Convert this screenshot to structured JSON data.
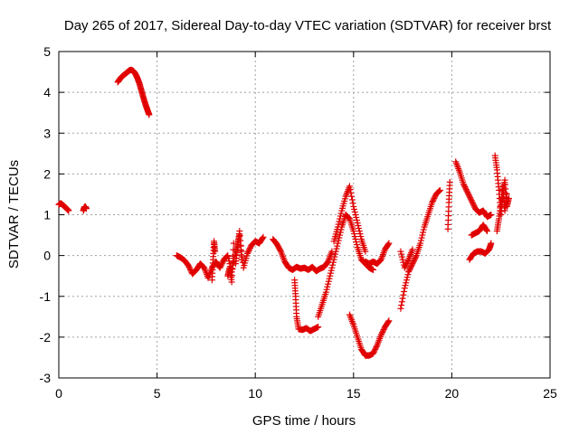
{
  "chart_data": {
    "type": "scatter",
    "title": "Day 265 of 2017, Sidereal Day-to-day VTEC variation (SDTVAR) for receiver brst",
    "xlabel": "GPS time / hours",
    "ylabel": "SDTVAR / TECUs",
    "xlim": [
      0,
      25
    ],
    "ylim": [
      -3,
      5
    ],
    "xticks": [
      0,
      5,
      10,
      15,
      20,
      25
    ],
    "yticks": [
      -3,
      -2,
      -1,
      0,
      1,
      2,
      3,
      4,
      5
    ],
    "grid": true,
    "marker": "+",
    "color": "#e00000",
    "series": [
      {
        "name": "brst",
        "segments": [
          {
            "x": [
              0.0,
              0.1,
              0.2,
              0.3,
              0.4,
              0.5
            ],
            "y": [
              1.25,
              1.28,
              1.24,
              1.2,
              1.15,
              1.1
            ]
          },
          {
            "x": [
              1.25,
              1.3,
              1.35,
              1.4
            ],
            "y": [
              1.1,
              1.18,
              1.2,
              1.15
            ]
          },
          {
            "x": [
              3.0,
              3.1,
              3.2,
              3.3,
              3.4,
              3.5,
              3.6,
              3.7,
              3.8,
              3.9,
              4.0,
              4.1,
              4.2,
              4.3,
              4.4,
              4.5,
              4.6
            ],
            "y": [
              4.25,
              4.32,
              4.38,
              4.42,
              4.46,
              4.5,
              4.54,
              4.55,
              4.52,
              4.45,
              4.35,
              4.22,
              4.05,
              3.88,
              3.72,
              3.58,
              3.45
            ]
          },
          {
            "x": [
              6.0,
              6.2,
              6.4,
              6.6,
              6.8,
              7.0,
              7.2,
              7.4,
              7.6,
              7.8,
              8.0,
              8.2,
              8.4,
              8.6,
              8.8,
              9.0,
              9.2,
              9.4,
              9.6,
              9.8,
              10.0,
              10.2,
              10.4
            ],
            "y": [
              0.0,
              -0.05,
              -0.12,
              -0.25,
              -0.45,
              -0.35,
              -0.2,
              -0.3,
              -0.55,
              -0.3,
              -0.15,
              -0.3,
              -0.1,
              0.0,
              -0.4,
              0.1,
              0.5,
              -0.3,
              0.05,
              0.25,
              0.35,
              0.3,
              0.45
            ]
          },
          {
            "x": [
              7.8,
              7.85,
              7.9,
              7.95
            ],
            "y": [
              -0.6,
              -0.1,
              0.35,
              0.1
            ]
          },
          {
            "x": [
              8.6,
              8.7,
              8.8,
              8.9
            ],
            "y": [
              -0.5,
              -0.3,
              -0.65,
              0.3
            ]
          },
          {
            "x": [
              9.0,
              9.1,
              9.2,
              9.3
            ],
            "y": [
              -0.2,
              0.2,
              0.6,
              -0.1
            ]
          },
          {
            "x": [
              10.9,
              11.1,
              11.3,
              11.5,
              11.7,
              11.9,
              12.1,
              12.3,
              12.5,
              12.7,
              12.9,
              13.1,
              13.3,
              13.5,
              13.7,
              13.9
            ],
            "y": [
              0.4,
              0.28,
              0.1,
              -0.15,
              -0.3,
              -0.35,
              -0.28,
              -0.32,
              -0.3,
              -0.35,
              -0.28,
              -0.38,
              -0.32,
              -0.28,
              -0.15,
              0.1
            ]
          },
          {
            "x": [
              12.0,
              12.05,
              12.1,
              12.2,
              12.4,
              12.6,
              12.8,
              13.0,
              13.2
            ],
            "y": [
              -0.6,
              -1.0,
              -1.5,
              -1.8,
              -1.82,
              -1.78,
              -1.85,
              -1.8,
              -1.75
            ]
          },
          {
            "x": [
              13.2,
              13.4,
              13.6,
              13.8,
              14.0,
              14.2,
              14.4,
              14.6,
              14.8,
              15.0,
              15.2,
              15.4,
              15.6,
              15.8,
              16.0
            ],
            "y": [
              -1.5,
              -1.2,
              -0.9,
              -0.5,
              -0.1,
              0.3,
              0.7,
              1.0,
              0.9,
              0.6,
              0.2,
              -0.1,
              -0.2,
              -0.3,
              -0.35
            ]
          },
          {
            "x": [
              14.0,
              14.2,
              14.4,
              14.6,
              14.8,
              15.0,
              15.2,
              15.4,
              15.6
            ],
            "y": [
              0.35,
              0.7,
              1.1,
              1.45,
              1.7,
              1.2,
              0.8,
              0.4,
              0.1
            ]
          },
          {
            "x": [
              15.6,
              15.8,
              16.0,
              16.2,
              16.4,
              16.6,
              16.8
            ],
            "y": [
              -0.15,
              -0.2,
              -0.15,
              -0.2,
              -0.1,
              0.15,
              0.3
            ]
          },
          {
            "x": [
              14.8,
              15.0,
              15.2,
              15.4,
              15.6,
              15.8,
              16.0,
              16.2,
              16.4,
              16.6,
              16.8
            ],
            "y": [
              -1.45,
              -1.7,
              -2.0,
              -2.3,
              -2.45,
              -2.45,
              -2.4,
              -2.2,
              -1.95,
              -1.75,
              -1.6
            ]
          },
          {
            "x": [
              17.4,
              17.6,
              17.8,
              18.0,
              18.2,
              18.4,
              18.6,
              18.8,
              19.0,
              19.2,
              19.4
            ],
            "y": [
              -1.3,
              -0.8,
              -0.4,
              -0.2,
              0.0,
              0.3,
              0.7,
              1.0,
              1.3,
              1.5,
              1.6
            ]
          },
          {
            "x": [
              17.4,
              17.6,
              17.8,
              18.0
            ],
            "y": [
              0.1,
              -0.3,
              -0.1,
              0.15
            ]
          },
          {
            "x": [
              19.8,
              19.85,
              19.9
            ],
            "y": [
              0.65,
              1.3,
              1.8
            ]
          },
          {
            "x": [
              20.2,
              20.4,
              20.6,
              20.8,
              21.0,
              21.2,
              21.4,
              21.6,
              21.8,
              22.0
            ],
            "y": [
              2.3,
              2.05,
              1.75,
              1.55,
              1.35,
              1.15,
              1.05,
              1.1,
              0.95,
              1.0
            ]
          },
          {
            "x": [
              20.9,
              21.1,
              21.3,
              21.5,
              21.7,
              21.9,
              22.0
            ],
            "y": [
              -0.1,
              0.05,
              0.1,
              0.1,
              0.05,
              0.15,
              0.3
            ]
          },
          {
            "x": [
              21.0,
              21.2,
              21.4,
              21.6,
              21.8
            ],
            "y": [
              0.5,
              0.55,
              0.6,
              0.75,
              0.6
            ]
          },
          {
            "x": [
              22.2,
              22.3,
              22.4,
              22.5,
              22.6,
              22.7,
              22.8,
              22.9
            ],
            "y": [
              2.45,
              2.1,
              1.6,
              1.0,
              1.5,
              1.85,
              1.2,
              1.4
            ]
          },
          {
            "x": [
              22.3,
              22.4,
              22.5,
              22.6,
              22.7,
              22.8
            ],
            "y": [
              0.6,
              0.9,
              1.3,
              1.7,
              1.1,
              1.5
            ]
          }
        ]
      }
    ]
  }
}
